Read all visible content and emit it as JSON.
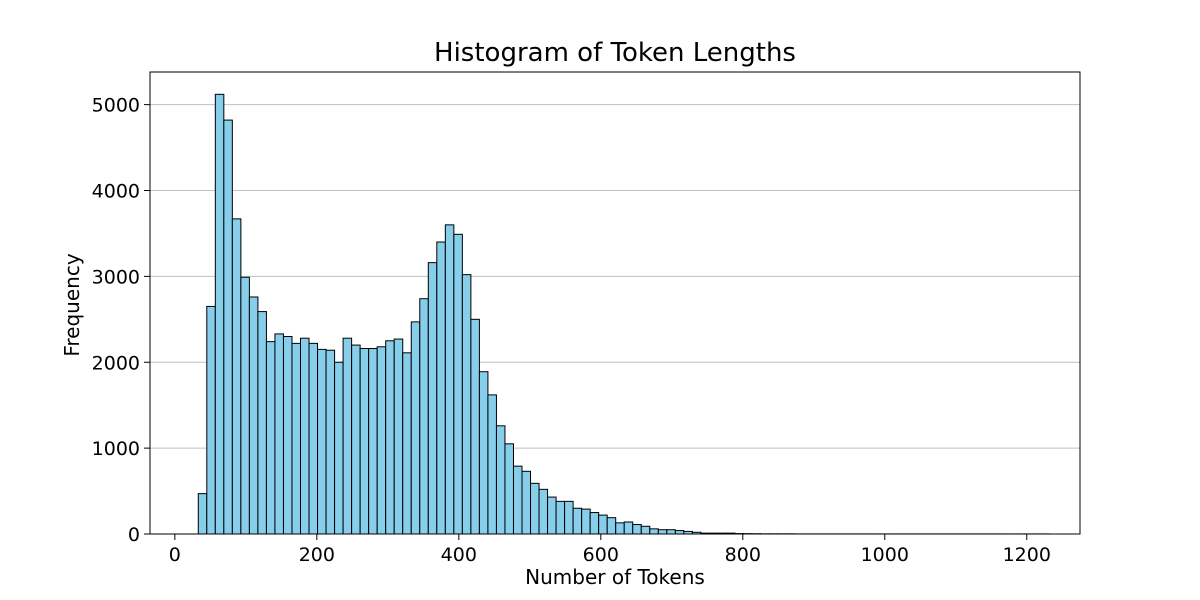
{
  "chart_data": {
    "type": "bar",
    "title": "Histogram of Token Lengths",
    "xlabel": "Number of Tokens",
    "ylabel": "Frequency",
    "xlim": [
      -35,
      1275
    ],
    "ylim": [
      0,
      5380
    ],
    "xticks": [
      0,
      200,
      400,
      600,
      800,
      1000,
      1200
    ],
    "yticks": [
      0,
      1000,
      2000,
      3000,
      4000,
      5000
    ],
    "grid": "y-axis",
    "bin_start": 33,
    "bin_width": 12,
    "values": [
      470,
      2650,
      5120,
      4820,
      3670,
      2990,
      2760,
      2590,
      2240,
      2330,
      2300,
      2220,
      2280,
      2220,
      2150,
      2140,
      2000,
      2280,
      2200,
      2160,
      2160,
      2180,
      2250,
      2270,
      2110,
      2470,
      2740,
      3160,
      3400,
      3600,
      3490,
      3020,
      2500,
      1890,
      1620,
      1260,
      1050,
      790,
      730,
      590,
      520,
      430,
      380,
      380,
      300,
      290,
      250,
      220,
      190,
      130,
      140,
      110,
      90,
      60,
      50,
      50,
      40,
      30,
      20,
      10,
      10,
      10,
      10,
      5,
      4,
      3,
      2,
      2,
      2,
      2,
      1,
      1,
      1,
      1,
      1,
      1,
      1,
      1,
      1,
      1,
      1,
      1,
      1,
      1,
      1,
      1,
      1,
      1,
      1,
      1,
      1,
      1,
      1,
      1,
      1,
      1,
      1,
      1,
      1,
      1
    ],
    "bar_color": "#87ceeb",
    "edge_color": "#000000",
    "grid_color": "#c0c0c0"
  }
}
